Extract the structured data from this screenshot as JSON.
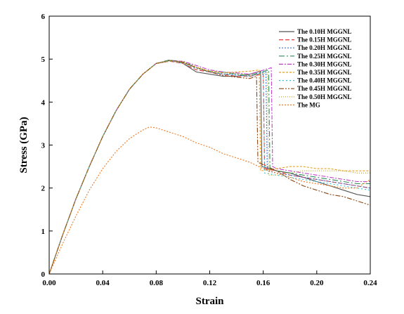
{
  "chart_data": {
    "type": "line",
    "xlabel": "Strain",
    "ylabel": "Stress (GPa)",
    "xlim": [
      0.0,
      0.24
    ],
    "ylim": [
      0,
      6
    ],
    "xticks": [
      0.0,
      0.04,
      0.08,
      0.12,
      0.16,
      0.2,
      0.24
    ],
    "xtick_labels": [
      "0.00",
      "0.04",
      "0.08",
      "0.12",
      "0.16",
      "0.20",
      "0.24"
    ],
    "yticks": [
      0,
      1,
      2,
      3,
      4,
      5,
      6
    ],
    "ytick_labels": [
      "0",
      "1",
      "2",
      "3",
      "4",
      "5",
      "6"
    ],
    "grid": false,
    "legend_position": "top-right",
    "series": [
      {
        "name": "The 0.10H MGGNL",
        "color": "#555555",
        "dash": "",
        "x": [
          0,
          0.01,
          0.02,
          0.03,
          0.04,
          0.05,
          0.06,
          0.07,
          0.08,
          0.09,
          0.095,
          0.1,
          0.11,
          0.12,
          0.13,
          0.14,
          0.15,
          0.158,
          0.159,
          0.17,
          0.18,
          0.19,
          0.2,
          0.21,
          0.22,
          0.23,
          0.24
        ],
        "y": [
          0,
          0.9,
          1.75,
          2.5,
          3.2,
          3.8,
          4.3,
          4.65,
          4.9,
          4.97,
          4.96,
          4.9,
          4.7,
          4.65,
          4.6,
          4.6,
          4.65,
          4.72,
          2.5,
          2.4,
          2.35,
          2.25,
          2.15,
          2.05,
          1.95,
          1.85,
          1.8
        ]
      },
      {
        "name": "The 0.15H MGGNL",
        "color": "#e8393b",
        "dash": "6,3",
        "x": [
          0,
          0.01,
          0.02,
          0.03,
          0.04,
          0.05,
          0.06,
          0.07,
          0.08,
          0.09,
          0.1,
          0.11,
          0.12,
          0.13,
          0.14,
          0.15,
          0.16,
          0.161,
          0.17,
          0.18,
          0.19,
          0.2,
          0.21,
          0.22,
          0.23,
          0.24
        ],
        "y": [
          0,
          0.9,
          1.75,
          2.5,
          3.2,
          3.8,
          4.3,
          4.65,
          4.9,
          4.95,
          4.9,
          4.75,
          4.7,
          4.65,
          4.6,
          4.6,
          4.65,
          2.45,
          2.4,
          2.3,
          2.25,
          2.2,
          2.15,
          2.1,
          2.05,
          2.0
        ]
      },
      {
        "name": "The 0.20H MGGNL",
        "color": "#3b6fd8",
        "dash": "2,2",
        "x": [
          0,
          0.01,
          0.02,
          0.03,
          0.04,
          0.05,
          0.06,
          0.07,
          0.08,
          0.09,
          0.1,
          0.11,
          0.12,
          0.13,
          0.14,
          0.15,
          0.162,
          0.163,
          0.17,
          0.18,
          0.19,
          0.2,
          0.21,
          0.22,
          0.23,
          0.24
        ],
        "y": [
          0,
          0.9,
          1.75,
          2.5,
          3.2,
          3.8,
          4.3,
          4.65,
          4.9,
          4.95,
          4.95,
          4.8,
          4.7,
          4.65,
          4.65,
          4.6,
          4.7,
          2.4,
          2.35,
          2.3,
          2.25,
          2.2,
          2.15,
          2.1,
          2.05,
          2.0
        ]
      },
      {
        "name": "The 0.25H MGGNL",
        "color": "#2e8b57",
        "dash": "8,3,2,3",
        "x": [
          0,
          0.01,
          0.02,
          0.03,
          0.04,
          0.05,
          0.06,
          0.07,
          0.08,
          0.09,
          0.1,
          0.11,
          0.12,
          0.13,
          0.14,
          0.15,
          0.164,
          0.165,
          0.17,
          0.18,
          0.19,
          0.2,
          0.21,
          0.22,
          0.23,
          0.24
        ],
        "y": [
          0,
          0.9,
          1.75,
          2.5,
          3.2,
          3.8,
          4.3,
          4.65,
          4.9,
          4.98,
          4.92,
          4.8,
          4.72,
          4.7,
          4.65,
          4.62,
          4.75,
          2.45,
          2.4,
          2.35,
          2.3,
          2.25,
          2.2,
          2.15,
          2.1,
          2.1
        ]
      },
      {
        "name": "The 0.30H MGGNL",
        "color": "#c040c8",
        "dash": "6,2,2,2",
        "x": [
          0,
          0.01,
          0.02,
          0.03,
          0.04,
          0.05,
          0.06,
          0.07,
          0.08,
          0.09,
          0.1,
          0.11,
          0.12,
          0.13,
          0.14,
          0.15,
          0.166,
          0.167,
          0.17,
          0.18,
          0.19,
          0.2,
          0.21,
          0.22,
          0.23,
          0.24
        ],
        "y": [
          0,
          0.9,
          1.75,
          2.5,
          3.2,
          3.8,
          4.3,
          4.65,
          4.9,
          4.95,
          4.95,
          4.85,
          4.75,
          4.7,
          4.68,
          4.65,
          4.8,
          2.5,
          2.45,
          2.4,
          2.35,
          2.3,
          2.25,
          2.2,
          2.15,
          2.15
        ]
      },
      {
        "name": "The 0.35H MGGNL",
        "color": "#e8a020",
        "dash": "3,2",
        "x": [
          0,
          0.01,
          0.02,
          0.03,
          0.04,
          0.05,
          0.06,
          0.07,
          0.08,
          0.09,
          0.1,
          0.11,
          0.12,
          0.13,
          0.14,
          0.15,
          0.157,
          0.158,
          0.17,
          0.18,
          0.19,
          0.2,
          0.21,
          0.22,
          0.23,
          0.24
        ],
        "y": [
          0,
          0.9,
          1.75,
          2.5,
          3.2,
          3.8,
          4.3,
          4.65,
          4.9,
          4.95,
          4.92,
          4.8,
          4.72,
          4.68,
          4.7,
          4.72,
          4.75,
          2.4,
          2.45,
          2.5,
          2.5,
          2.45,
          2.45,
          2.4,
          2.4,
          2.4
        ]
      },
      {
        "name": "The 0.40H MGGNL",
        "color": "#30c0d8",
        "dash": "2,3",
        "x": [
          0,
          0.01,
          0.02,
          0.03,
          0.04,
          0.05,
          0.06,
          0.07,
          0.08,
          0.09,
          0.1,
          0.11,
          0.12,
          0.13,
          0.14,
          0.15,
          0.16,
          0.161,
          0.17,
          0.18,
          0.19,
          0.2,
          0.21,
          0.22,
          0.23,
          0.24
        ],
        "y": [
          0,
          0.9,
          1.75,
          2.5,
          3.2,
          3.8,
          4.3,
          4.65,
          4.9,
          4.96,
          4.9,
          4.78,
          4.7,
          4.66,
          4.62,
          4.6,
          4.7,
          2.35,
          2.3,
          2.25,
          2.2,
          2.15,
          2.1,
          2.05,
          2.0,
          1.95
        ]
      },
      {
        "name": "The 0.45H MGGNL",
        "color": "#8b4513",
        "dash": "7,2,2,2,2,2",
        "x": [
          0,
          0.01,
          0.02,
          0.03,
          0.04,
          0.05,
          0.06,
          0.07,
          0.08,
          0.09,
          0.1,
          0.11,
          0.12,
          0.13,
          0.14,
          0.15,
          0.155,
          0.156,
          0.17,
          0.18,
          0.19,
          0.2,
          0.21,
          0.22,
          0.23,
          0.24
        ],
        "y": [
          0,
          0.9,
          1.75,
          2.5,
          3.2,
          3.8,
          4.3,
          4.65,
          4.9,
          4.97,
          4.93,
          4.8,
          4.7,
          4.62,
          4.58,
          4.55,
          4.6,
          2.6,
          2.4,
          2.2,
          2.05,
          1.95,
          1.85,
          1.8,
          1.7,
          1.6
        ]
      },
      {
        "name": "The 0.50H MGGNL",
        "color": "#b8a020",
        "dash": "1,2",
        "x": [
          0,
          0.01,
          0.02,
          0.03,
          0.04,
          0.05,
          0.06,
          0.07,
          0.08,
          0.09,
          0.1,
          0.11,
          0.12,
          0.13,
          0.14,
          0.15,
          0.163,
          0.164,
          0.17,
          0.18,
          0.19,
          0.2,
          0.21,
          0.22,
          0.23,
          0.24
        ],
        "y": [
          0,
          0.9,
          1.75,
          2.5,
          3.2,
          3.8,
          4.3,
          4.65,
          4.9,
          4.96,
          4.94,
          4.82,
          4.72,
          4.68,
          4.66,
          4.62,
          4.68,
          2.3,
          2.3,
          2.35,
          2.4,
          2.4,
          2.4,
          2.4,
          2.35,
          2.35
        ]
      },
      {
        "name": "The MG",
        "color": "#f07820",
        "dash": "2,2",
        "x": [
          0,
          0.01,
          0.02,
          0.03,
          0.04,
          0.05,
          0.06,
          0.07,
          0.075,
          0.08,
          0.09,
          0.1,
          0.11,
          0.12,
          0.13,
          0.14,
          0.15,
          0.16,
          0.17,
          0.18,
          0.19,
          0.2,
          0.21,
          0.22,
          0.23,
          0.24
        ],
        "y": [
          0,
          0.7,
          1.35,
          1.95,
          2.45,
          2.85,
          3.15,
          3.35,
          3.42,
          3.4,
          3.3,
          3.2,
          3.05,
          2.95,
          2.8,
          2.7,
          2.6,
          2.45,
          2.35,
          2.25,
          2.15,
          2.1,
          2.05,
          2.0,
          2.0,
          2.2
        ]
      }
    ]
  }
}
